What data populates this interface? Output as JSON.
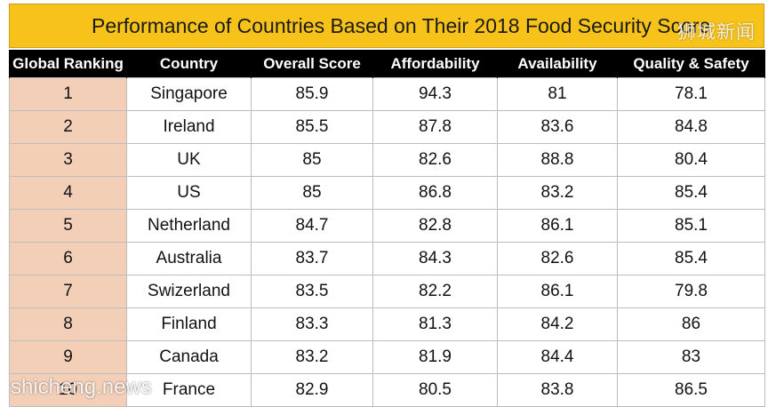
{
  "title": "Performance of Countries Based on Their 2018 Food Security Score",
  "watermark_top": "狮城新闻",
  "watermark_bottom": "shicheng.news",
  "colors": {
    "title_bg": "#f7c21a",
    "header_bg": "#000000",
    "rank_bg": "#f4cfb8"
  },
  "table": {
    "headers": [
      "Global Ranking",
      "Country",
      "Overall Score",
      "Affordability",
      "Availability",
      "Quality & Safety"
    ],
    "rows": [
      [
        "1",
        "Singapore",
        "85.9",
        "94.3",
        "81",
        "78.1"
      ],
      [
        "2",
        "Ireland",
        "85.5",
        "87.8",
        "83.6",
        "84.8"
      ],
      [
        "3",
        "UK",
        "85",
        "82.6",
        "88.8",
        "80.4"
      ],
      [
        "4",
        "US",
        "85",
        "86.8",
        "83.2",
        "85.4"
      ],
      [
        "5",
        "Netherland",
        "84.7",
        "82.8",
        "86.1",
        "85.1"
      ],
      [
        "6",
        "Australia",
        "83.7",
        "84.3",
        "82.6",
        "85.4"
      ],
      [
        "7",
        "Swizerland",
        "83.5",
        "82.2",
        "86.1",
        "79.8"
      ],
      [
        "8",
        "Finland",
        "83.3",
        "81.3",
        "84.2",
        "86"
      ],
      [
        "9",
        "Canada",
        "83.2",
        "81.9",
        "84.4",
        "83"
      ],
      [
        "10",
        "France",
        "82.9",
        "80.5",
        "83.8",
        "86.5"
      ]
    ]
  }
}
